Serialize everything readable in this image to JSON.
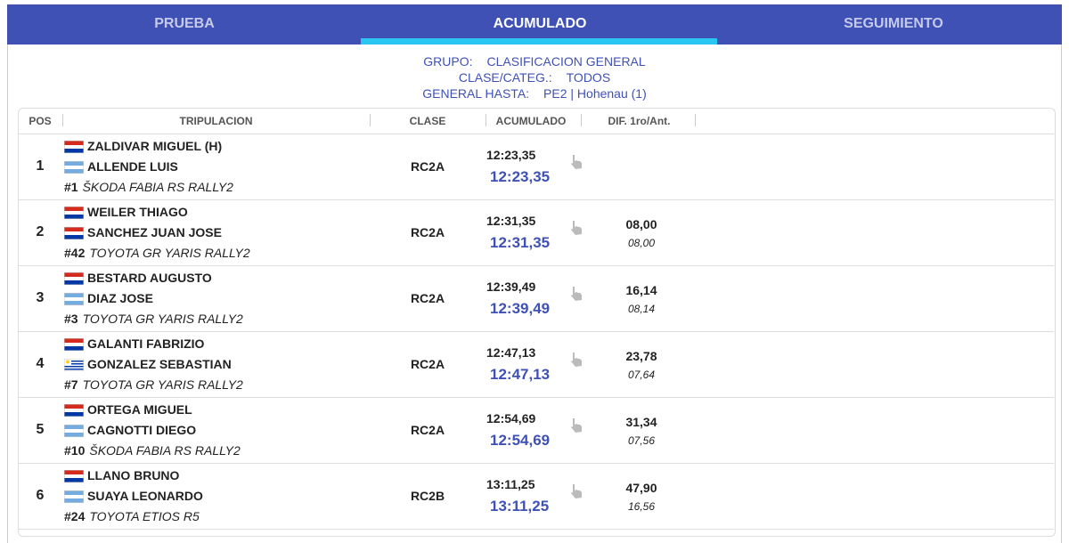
{
  "tabs": [
    "PRUEBA",
    "ACUMULADO",
    "SEGUIMIENTO"
  ],
  "info": [
    {
      "label": "GRUPO:",
      "value": "CLASIFICACION GENERAL"
    },
    {
      "label": "CLASE/CATEG.:",
      "value": "TODOS"
    },
    {
      "label": "GENERAL HASTA:",
      "value": "PE2 | Hohenau (1)"
    }
  ],
  "table": {
    "headers": [
      "POS",
      "TRIPULACION",
      "CLASE",
      "ACUMULADO",
      "DIF. 1ro/Ant."
    ],
    "rows": [
      {
        "pos": "1",
        "driver": "ZALDIVAR MIGUEL (H)",
        "codriver": "ALLENDE LUIS",
        "number": "#1",
        "car": "ŠKODA FABIA RS RALLY2",
        "class": "RC2A",
        "time": "12:23,35",
        "total": "12:23,35"
      },
      {
        "pos": "2",
        "driver": "WEILER THIAGO",
        "codriver": "SANCHEZ JUAN JOSE",
        "number": "#42",
        "car": "TOYOTA GR YARIS RALLY2",
        "class": "RC2A",
        "time": "12:31,35",
        "total": "12:31,35",
        "dif": "08,00",
        "gap": "08,00"
      },
      {
        "pos": "3",
        "driver": "BESTARD AUGUSTO",
        "codriver": "DIAZ JOSE",
        "number": "#3",
        "car": "TOYOTA GR YARIS RALLY2",
        "class": "RC2A",
        "time": "12:39,49",
        "total": "12:39,49",
        "dif": "16,14",
        "gap": "08,14"
      },
      {
        "pos": "4",
        "driver": "GALANTI FABRIZIO",
        "codriver": "GONZALEZ SEBASTIAN",
        "number": "#7",
        "car": "TOYOTA GR YARIS RALLY2",
        "class": "RC2A",
        "time": "12:47,13",
        "total": "12:47,13",
        "dif": "23,78",
        "gap": "07,64"
      },
      {
        "pos": "5",
        "driver": "ORTEGA MIGUEL",
        "codriver": "CAGNOTTI DIEGO",
        "number": "#10",
        "car": "ŠKODA FABIA RS RALLY2",
        "class": "RC2A",
        "time": "12:54,69",
        "total": "12:54,69",
        "dif": "31,34",
        "gap": "07,56"
      },
      {
        "pos": "6",
        "driver": "LLANO BRUNO",
        "codriver": "SUAYA LEONARDO",
        "number": "#24",
        "car": "TOYOTA ETIOS R5",
        "class": "RC2B",
        "time": "13:11,25",
        "total": "13:11,25",
        "dif": "47,90",
        "gap": "16,56"
      }
    ]
  }
}
